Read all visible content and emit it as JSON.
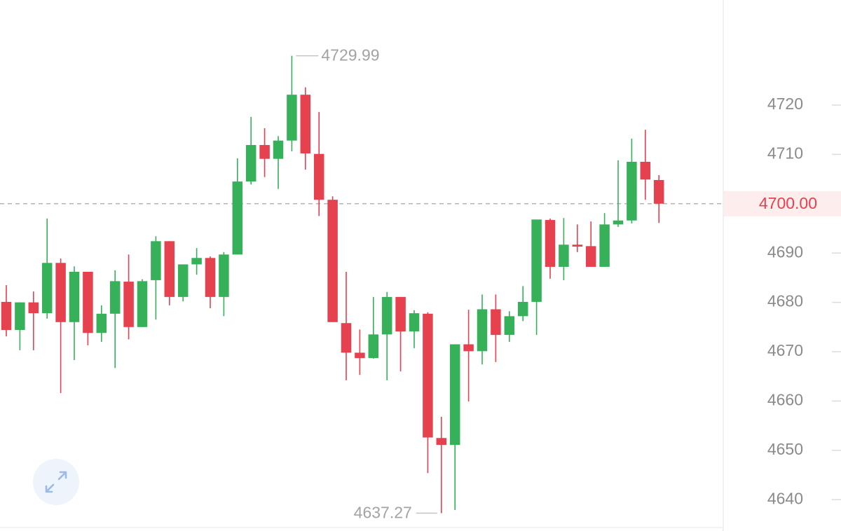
{
  "chart_data": {
    "type": "candlestick",
    "up_color": "#36b15a",
    "down_color": "#e5414f",
    "open": [
      4680.1,
      4674.4,
      4680.0,
      4677.8,
      4688.0,
      4676.0,
      4686.2,
      4673.8,
      4677.7,
      4684.2,
      4675.0,
      4684.5,
      4692.4,
      4681.1,
      4687.7,
      4689.0,
      4681.1,
      4689.7,
      4704.5,
      4711.9,
      4709.1,
      4712.8,
      4722.1,
      4710.1,
      4700.8,
      4675.8,
      4669.8,
      4668.7,
      4673.5,
      4681.1,
      4674.1,
      4677.7,
      4652.5,
      4651.1,
      4671.5,
      4670.1,
      4678.6,
      4673.4,
      4677.2,
      4680.1,
      4696.7,
      4687.2,
      4691.7,
      4691.4,
      4687.2,
      4695.8,
      4696.6,
      4708.5,
      4704.8
    ],
    "high": [
      4683.5,
      4680.0,
      4682.2,
      4697.0,
      4688.9,
      4687.3,
      4686.2,
      4679.4,
      4686.5,
      4689.7,
      4684.7,
      4693.4,
      4692.4,
      4687.7,
      4691.0,
      4689.3,
      4690.2,
      4709.2,
      4717.6,
      4715.3,
      4713.7,
      4729.99,
      4723.6,
      4718.6,
      4701.5,
      4686.2,
      4674.5,
      4681.1,
      4682.1,
      4681.1,
      4678.4,
      4678.0,
      4656.8,
      4671.5,
      4678.5,
      4681.6,
      4681.6,
      4678.2,
      4683.3,
      4696.8,
      4697.0,
      4697.1,
      4695.8,
      4696.4,
      4698.1,
      4708.8,
      4713.2,
      4715.0,
      4705.8
    ],
    "low": [
      4673.1,
      4670.3,
      4670.3,
      4676.7,
      4661.6,
      4668.3,
      4671.3,
      4672.0,
      4666.7,
      4672.5,
      4675.0,
      4676.5,
      4679.4,
      4680.2,
      4685.6,
      4678.8,
      4677.2,
      4689.7,
      4703.9,
      4705.4,
      4703.0,
      4710.6,
      4706.9,
      4697.5,
      4676.0,
      4664.2,
      4665.3,
      4668.6,
      4664.2,
      4666.0,
      4670.7,
      4645.4,
      4637.27,
      4637.9,
      4659.9,
      4667.4,
      4667.9,
      4672.0,
      4676.2,
      4673.4,
      4684.8,
      4684.5,
      4690.2,
      4687.2,
      4687.2,
      4695.3,
      4696.0,
      4700.8,
      4696.1
    ],
    "close": [
      4674.4,
      4680.0,
      4677.8,
      4688.0,
      4676.0,
      4686.2,
      4673.8,
      4677.7,
      4684.3,
      4675.0,
      4684.3,
      4692.4,
      4681.1,
      4687.7,
      4689.0,
      4681.1,
      4689.7,
      4704.5,
      4711.9,
      4709.1,
      4712.8,
      4722.1,
      4710.2,
      4700.8,
      4676.0,
      4669.8,
      4668.7,
      4673.5,
      4681.1,
      4674.1,
      4677.8,
      4652.6,
      4651.1,
      4671.5,
      4670.1,
      4678.6,
      4673.4,
      4677.2,
      4680.1,
      4696.8,
      4687.2,
      4691.7,
      4691.3,
      4687.2,
      4695.8,
      4696.6,
      4708.5,
      4704.9,
      4700.0
    ],
    "last_price": {
      "value": 4700,
      "label": "4700.00"
    },
    "last_price_color": "#e5414f",
    "ylim": [
      4634.5,
      4741.3
    ],
    "yticks": [
      4640,
      4650,
      4660,
      4670,
      4680,
      4690,
      4700,
      4710,
      4720
    ]
  }
}
